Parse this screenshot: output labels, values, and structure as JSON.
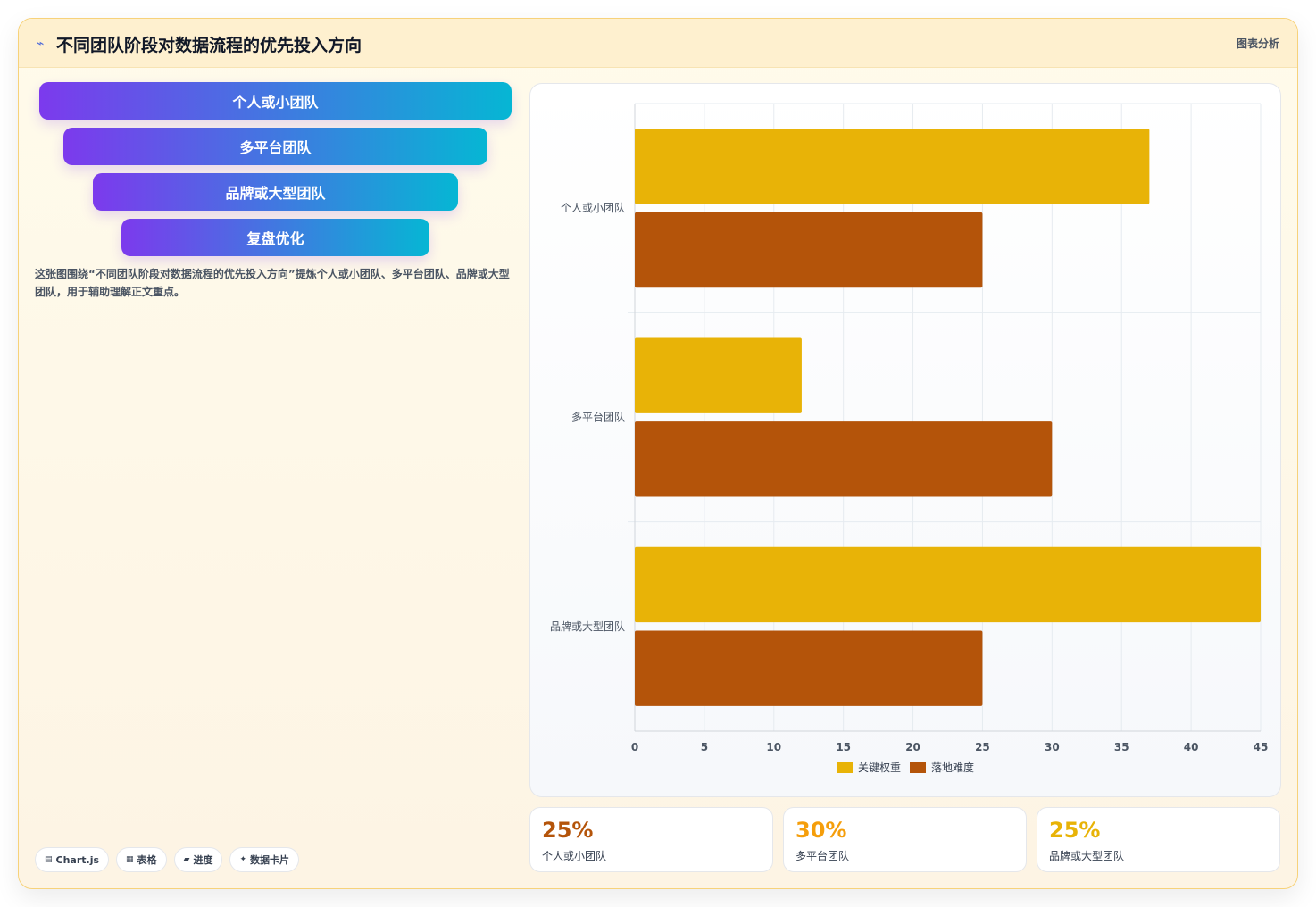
{
  "header": {
    "title": "不同团队阶段对数据流程的优先投入方向",
    "tag": "图表分析",
    "title_icon": "chart-trend-icon"
  },
  "funnel": {
    "items": [
      "个人或小团队",
      "多平台团队",
      "品牌或大型团队",
      "复盘优化"
    ]
  },
  "description": "这张图围绕“不同团队阶段对数据流程的优先投入方向”提炼个人或小团队、多平台团队、品牌或大型团队，用于辅助理解正文重点。",
  "chips": [
    {
      "icon": "image-icon",
      "glyph": "▤",
      "label": "Chart.js"
    },
    {
      "icon": "table-icon",
      "glyph": "▦",
      "label": "表格"
    },
    {
      "icon": "progress-icon",
      "glyph": "▰",
      "label": "进度"
    },
    {
      "icon": "sparkle-icon",
      "glyph": "✦",
      "label": "数据卡片"
    }
  ],
  "chart_data": {
    "type": "bar",
    "orientation": "horizontal",
    "categories": [
      "个人或小团队",
      "多平台团队",
      "品牌或大型团队"
    ],
    "series": [
      {
        "name": "关键权重",
        "values": [
          37,
          12,
          45
        ],
        "color": "#e8b307"
      },
      {
        "name": "落地难度",
        "values": [
          25,
          30,
          25
        ],
        "color": "#b4540a"
      }
    ],
    "xlim": [
      0,
      45
    ],
    "x_ticks": [
      0,
      5,
      10,
      15,
      20,
      25,
      30,
      35,
      40,
      45
    ],
    "grid": true,
    "legend": "bottom"
  },
  "stats": [
    {
      "value": "25%",
      "label": "个人或小团队",
      "color": "#b4540a"
    },
    {
      "value": "30%",
      "label": "多平台团队",
      "color": "#f59e0b"
    },
    {
      "value": "25%",
      "label": "品牌或大型团队",
      "color": "#e8b307"
    }
  ]
}
